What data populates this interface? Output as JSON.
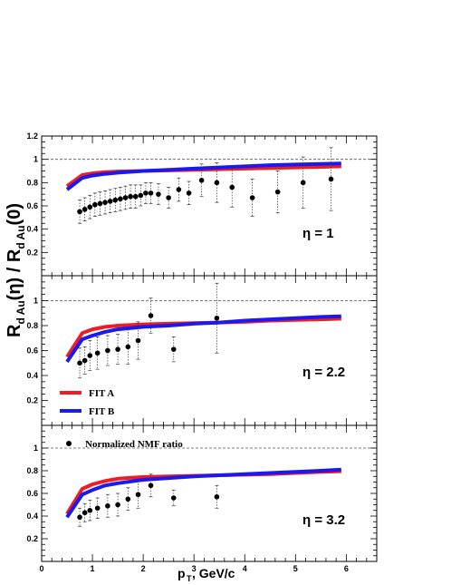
{
  "chart_data": {
    "type": "scatter",
    "xlabel_main": "p",
    "xlabel_sub": "T",
    "xlabel_rest": ", GeV/c",
    "ylabel": {
      "r1": "R",
      "s1": "d Au",
      "p1": "(η) / R",
      "s2": "d Au",
      "p2": "(0)"
    },
    "x_axis": {
      "range": [
        0,
        6.6
      ],
      "ticks": [
        0,
        1,
        2,
        3,
        4,
        5,
        6
      ]
    },
    "reference_line": 1.0,
    "colors": {
      "fit_a": "#ee1c24",
      "fit_b": "#1a1aee",
      "points": "#000000",
      "reference": "#555555"
    },
    "legend": {
      "fit_a": "FIT A",
      "fit_b": "FIT B",
      "points": "Normalized NMF ratio"
    },
    "panels": [
      {
        "eta_label": "η = 1",
        "ylim": [
          0,
          1.2
        ],
        "yticks": [
          "0.2",
          "0.4",
          "0.6",
          "0.8",
          "1",
          "1.2"
        ],
        "fit_a": {
          "x": [
            0.5,
            0.8,
            1.0,
            1.25,
            1.5,
            2.0,
            2.5,
            3.0,
            3.5,
            4.0,
            4.5,
            5.0,
            5.5,
            5.9
          ],
          "y": [
            0.77,
            0.865,
            0.88,
            0.89,
            0.895,
            0.9,
            0.905,
            0.91,
            0.915,
            0.92,
            0.925,
            0.93,
            0.935,
            0.94
          ]
        },
        "fit_b": {
          "x": [
            0.5,
            0.8,
            1.0,
            1.25,
            1.5,
            2.0,
            2.5,
            3.0,
            3.5,
            4.0,
            4.5,
            5.0,
            5.5,
            5.9
          ],
          "y": [
            0.74,
            0.84,
            0.86,
            0.875,
            0.885,
            0.9,
            0.91,
            0.92,
            0.93,
            0.94,
            0.95,
            0.955,
            0.96,
            0.965
          ]
        },
        "points": {
          "x": [
            0.75,
            0.85,
            0.95,
            1.05,
            1.15,
            1.25,
            1.35,
            1.45,
            1.55,
            1.65,
            1.75,
            1.85,
            1.95,
            2.05,
            2.15,
            2.3,
            2.5,
            2.7,
            2.9,
            3.15,
            3.45,
            3.75,
            4.15,
            4.65,
            5.15,
            5.7
          ],
          "y": [
            0.55,
            0.57,
            0.59,
            0.61,
            0.62,
            0.63,
            0.64,
            0.65,
            0.66,
            0.67,
            0.68,
            0.68,
            0.69,
            0.71,
            0.71,
            0.7,
            0.67,
            0.74,
            0.71,
            0.82,
            0.8,
            0.76,
            0.67,
            0.72,
            0.8,
            0.83
          ],
          "err": [
            0.1,
            0.1,
            0.1,
            0.1,
            0.1,
            0.1,
            0.1,
            0.1,
            0.1,
            0.1,
            0.1,
            0.1,
            0.09,
            0.09,
            0.09,
            0.09,
            0.09,
            0.1,
            0.1,
            0.14,
            0.17,
            0.17,
            0.16,
            0.18,
            0.22,
            0.27
          ]
        }
      },
      {
        "eta_label": "η = 2.2",
        "ylim": [
          0,
          1.2
        ],
        "yticks": [
          "0.2",
          "0.4",
          "0.6",
          "0.8",
          "1"
        ],
        "fit_a": {
          "x": [
            0.5,
            0.8,
            1.0,
            1.25,
            1.5,
            2.0,
            2.5,
            3.0,
            3.5,
            4.0,
            4.5,
            5.0,
            5.5,
            5.9
          ],
          "y": [
            0.55,
            0.74,
            0.77,
            0.79,
            0.8,
            0.81,
            0.815,
            0.82,
            0.825,
            0.83,
            0.84,
            0.845,
            0.85,
            0.855
          ]
        },
        "fit_b": {
          "x": [
            0.5,
            0.8,
            1.0,
            1.25,
            1.5,
            2.0,
            2.5,
            3.0,
            3.5,
            4.0,
            4.5,
            5.0,
            5.5,
            5.9
          ],
          "y": [
            0.51,
            0.69,
            0.72,
            0.75,
            0.77,
            0.79,
            0.8,
            0.815,
            0.825,
            0.84,
            0.85,
            0.86,
            0.87,
            0.875
          ]
        },
        "points": {
          "x": [
            0.75,
            0.85,
            0.95,
            1.1,
            1.3,
            1.5,
            1.7,
            1.9,
            2.15,
            2.6,
            3.45
          ],
          "y": [
            0.5,
            0.52,
            0.56,
            0.58,
            0.6,
            0.61,
            0.63,
            0.68,
            0.88,
            0.61,
            0.86
          ],
          "err": [
            0.12,
            0.11,
            0.12,
            0.13,
            0.12,
            0.12,
            0.14,
            0.15,
            0.14,
            0.1,
            0.28
          ]
        }
      },
      {
        "eta_label": "η = 3.2",
        "ylim": [
          0,
          1.2
        ],
        "yticks": [
          "0.2",
          "0.4",
          "0.6",
          "0.8",
          "1"
        ],
        "fit_a": {
          "x": [
            0.5,
            0.8,
            1.0,
            1.25,
            1.5,
            2.0,
            2.5,
            3.0,
            3.5,
            4.0,
            4.5,
            5.0,
            5.5,
            5.9
          ],
          "y": [
            0.42,
            0.64,
            0.68,
            0.71,
            0.73,
            0.745,
            0.75,
            0.755,
            0.76,
            0.765,
            0.77,
            0.78,
            0.79,
            0.795
          ]
        },
        "fit_b": {
          "x": [
            0.5,
            0.8,
            1.0,
            1.25,
            1.5,
            2.0,
            2.5,
            3.0,
            3.5,
            4.0,
            4.5,
            5.0,
            5.5,
            5.9
          ],
          "y": [
            0.39,
            0.59,
            0.63,
            0.67,
            0.69,
            0.72,
            0.735,
            0.75,
            0.76,
            0.77,
            0.78,
            0.79,
            0.8,
            0.81
          ]
        },
        "points": {
          "x": [
            0.75,
            0.85,
            0.95,
            1.1,
            1.3,
            1.5,
            1.7,
            1.9,
            2.15,
            2.6,
            3.45
          ],
          "y": [
            0.39,
            0.43,
            0.45,
            0.47,
            0.49,
            0.5,
            0.55,
            0.59,
            0.67,
            0.56,
            0.57
          ],
          "err": [
            0.08,
            0.08,
            0.09,
            0.09,
            0.1,
            0.1,
            0.1,
            0.12,
            0.1,
            0.07,
            0.1
          ]
        }
      }
    ]
  }
}
